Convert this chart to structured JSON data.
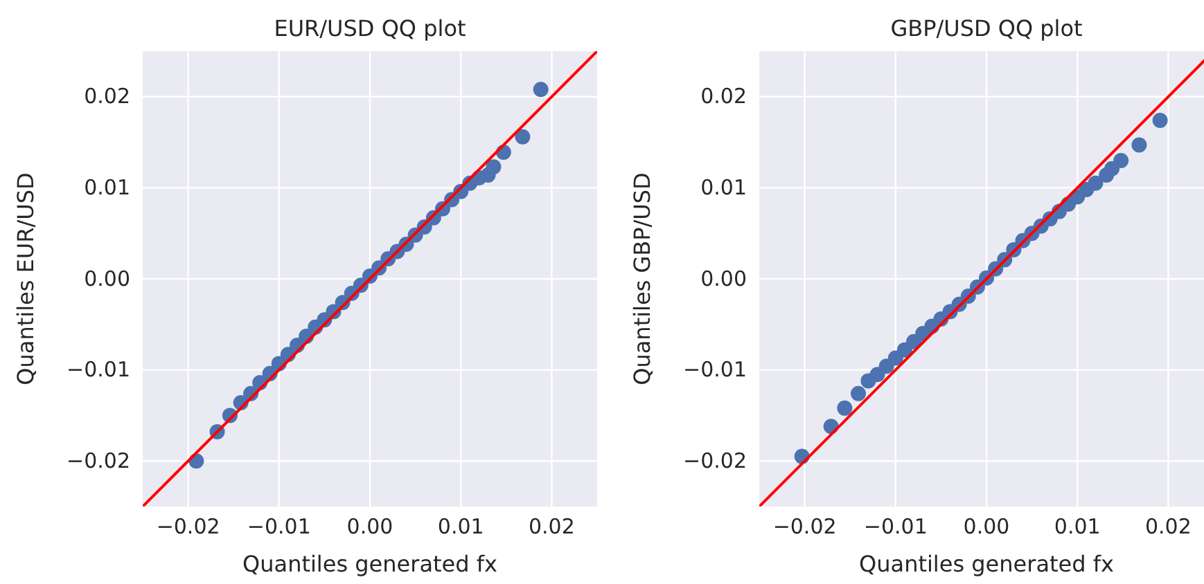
{
  "chart_data": [
    {
      "type": "scatter",
      "title": "EUR/USD QQ plot",
      "xlabel": "Quantiles generated fx",
      "ylabel": "Quantiles EUR/USD",
      "xlim": [
        -0.025,
        0.025
      ],
      "ylim": [
        -0.025,
        0.025
      ],
      "xticks": [
        {
          "value": -0.02,
          "label": "−0.02"
        },
        {
          "value": -0.01,
          "label": "−0.01"
        },
        {
          "value": 0,
          "label": "0.00"
        },
        {
          "value": 0.01,
          "label": "0.01"
        },
        {
          "value": 0.02,
          "label": "0.02"
        }
      ],
      "yticks": [
        {
          "value": -0.02,
          "label": "−0.02"
        },
        {
          "value": -0.01,
          "label": "−0.01"
        },
        {
          "value": 0,
          "label": "0.00"
        },
        {
          "value": 0.01,
          "label": "0.01"
        },
        {
          "value": 0.02,
          "label": "0.02"
        }
      ],
      "grid": true,
      "series": [
        {
          "marker": "circle",
          "color": "#4c72b0",
          "x": [
            -0.0191,
            -0.0168,
            -0.0154,
            -0.0142,
            -0.0131,
            -0.0121,
            -0.011,
            -0.01,
            -0.009,
            -0.008,
            -0.007,
            -0.006,
            -0.005,
            -0.004,
            -0.003,
            -0.002,
            -0.001,
            0,
            0.001,
            0.002,
            0.003,
            0.004,
            0.005,
            0.006,
            0.007,
            0.008,
            0.009,
            0.01,
            0.011,
            0.012,
            0.013,
            0.0136,
            0.0147,
            0.0168,
            0.0188
          ],
          "values": [
            -0.02,
            -0.0168,
            -0.015,
            -0.0136,
            -0.0126,
            -0.0114,
            -0.0104,
            -0.0093,
            -0.0083,
            -0.0073,
            -0.0063,
            -0.0053,
            -0.0045,
            -0.0036,
            -0.0026,
            -0.0016,
            -0.0007,
            0.0003,
            0.0012,
            0.0022,
            0.003,
            0.0038,
            0.0048,
            0.0057,
            0.0067,
            0.0077,
            0.0087,
            0.0096,
            0.0105,
            0.0111,
            0.0114,
            0.0123,
            0.0139,
            0.0156,
            0.0208
          ]
        },
        {
          "type": "line",
          "color": "#ff0000",
          "x": [
            -0.025,
            0.025
          ],
          "values": [
            -0.025,
            0.025
          ]
        }
      ]
    },
    {
      "type": "scatter",
      "title": "GBP/USD QQ plot",
      "xlabel": "Quantiles generated fx",
      "ylabel": "Quantiles GBP/USD",
      "xlim": [
        -0.025,
        0.025
      ],
      "ylim": [
        -0.025,
        0.025
      ],
      "xticks": [
        {
          "value": -0.02,
          "label": "−0.02"
        },
        {
          "value": -0.01,
          "label": "−0.01"
        },
        {
          "value": 0,
          "label": "0.00"
        },
        {
          "value": 0.01,
          "label": "0.01"
        },
        {
          "value": 0.02,
          "label": "0.02"
        }
      ],
      "yticks": [
        {
          "value": -0.02,
          "label": "−0.02"
        },
        {
          "value": -0.01,
          "label": "−0.01"
        },
        {
          "value": 0,
          "label": "0.00"
        },
        {
          "value": 0.01,
          "label": "0.01"
        },
        {
          "value": 0.02,
          "label": "0.02"
        }
      ],
      "grid": true,
      "series": [
        {
          "marker": "circle",
          "color": "#4c72b0",
          "x": [
            -0.0203,
            -0.0171,
            -0.0156,
            -0.0141,
            -0.013,
            -0.012,
            -0.011,
            -0.01,
            -0.009,
            -0.008,
            -0.007,
            -0.006,
            -0.005,
            -0.004,
            -0.003,
            -0.002,
            -0.001,
            0,
            0.001,
            0.002,
            0.003,
            0.004,
            0.005,
            0.006,
            0.007,
            0.008,
            0.009,
            0.01,
            0.011,
            0.012,
            0.0132,
            0.0138,
            0.0148,
            0.0168,
            0.0191
          ],
          "values": [
            -0.0195,
            -0.0162,
            -0.0142,
            -0.0126,
            -0.0112,
            -0.0105,
            -0.0096,
            -0.0087,
            -0.0078,
            -0.0069,
            -0.006,
            -0.0052,
            -0.0044,
            -0.0036,
            -0.0028,
            -0.0019,
            -0.0009,
            0.0001,
            0.0011,
            0.0021,
            0.0032,
            0.0042,
            0.005,
            0.0058,
            0.0066,
            0.0074,
            0.0082,
            0.009,
            0.0098,
            0.0105,
            0.0114,
            0.0121,
            0.013,
            0.0147,
            0.0174
          ]
        },
        {
          "type": "line",
          "color": "#ff0000",
          "x": [
            -0.025,
            0.025
          ],
          "values": [
            -0.025,
            0.025
          ]
        }
      ]
    }
  ]
}
